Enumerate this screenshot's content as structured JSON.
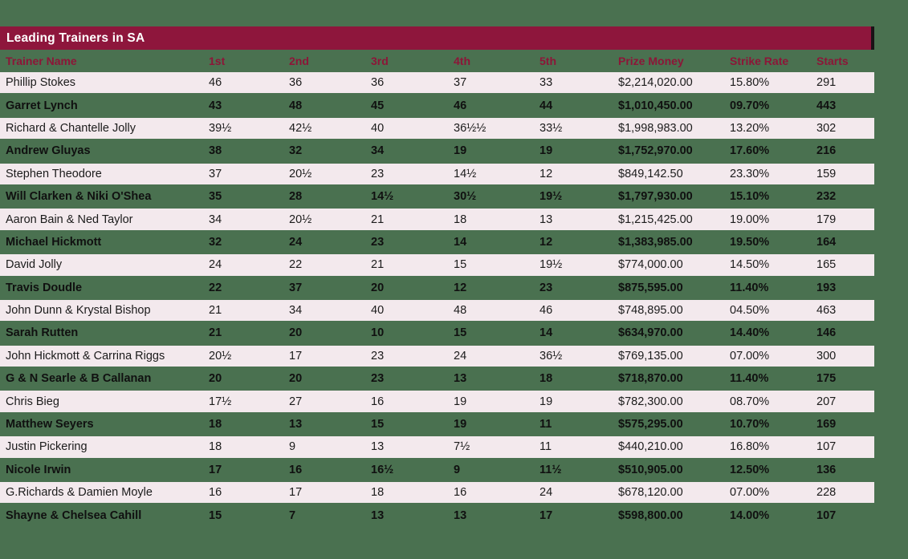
{
  "page": {
    "background_color": "#4A7150",
    "title_bar_color": "#8E163C",
    "title_text_color": "#FFFFFF",
    "header_text_color": "#8C1638",
    "stripe_row_color": "#F3E9ED"
  },
  "chart_data": {
    "type": "table",
    "title": "Leading Trainers in SA",
    "columns": [
      "Trainer Name",
      "1st",
      "2nd",
      "3rd",
      "4th",
      "5th",
      "Prize Money",
      "Strike Rate",
      "Starts"
    ],
    "rows": [
      [
        "Phillip Stokes",
        "46",
        "36",
        "36",
        "37",
        "33",
        "$2,214,020.00",
        "15.80%",
        "291"
      ],
      [
        "Garret Lynch",
        "43",
        "48",
        "45",
        "46",
        "44",
        "$1,010,450.00",
        "09.70%",
        "443"
      ],
      [
        "Richard & Chantelle Jolly",
        "39½",
        "42½",
        "40",
        "36½½",
        "33½",
        "$1,998,983.00",
        "13.20%",
        "302"
      ],
      [
        "Andrew Gluyas",
        "38",
        "32",
        "34",
        "19",
        "19",
        "$1,752,970.00",
        "17.60%",
        "216"
      ],
      [
        "Stephen Theodore",
        "37",
        "20½",
        "23",
        "14½",
        "12",
        "$849,142.50",
        "23.30%",
        "159"
      ],
      [
        "Will Clarken & Niki O'Shea",
        "35",
        "28",
        "14½",
        "30½",
        "19½",
        "$1,797,930.00",
        "15.10%",
        "232"
      ],
      [
        "Aaron Bain & Ned Taylor",
        "34",
        "20½",
        "21",
        "18",
        "13",
        "$1,215,425.00",
        "19.00%",
        "179"
      ],
      [
        "Michael Hickmott",
        "32",
        "24",
        "23",
        "14",
        "12",
        "$1,383,985.00",
        "19.50%",
        "164"
      ],
      [
        "David Jolly",
        "24",
        "22",
        "21",
        "15",
        "19½",
        "$774,000.00",
        "14.50%",
        "165"
      ],
      [
        "Travis Doudle",
        "22",
        "37",
        "20",
        "12",
        "23",
        "$875,595.00",
        "11.40%",
        "193"
      ],
      [
        "John Dunn & Krystal Bishop",
        "21",
        "34",
        "40",
        "48",
        "46",
        "$748,895.00",
        "04.50%",
        "463"
      ],
      [
        "Sarah Rutten",
        "21",
        "20",
        "10",
        "15",
        "14",
        "$634,970.00",
        "14.40%",
        "146"
      ],
      [
        "John Hickmott & Carrina Riggs",
        "20½",
        "17",
        "23",
        "24",
        "36½",
        "$769,135.00",
        "07.00%",
        "300"
      ],
      [
        "G & N Searle & B Callanan",
        "20",
        "20",
        "23",
        "13",
        "18",
        "$718,870.00",
        "11.40%",
        "175"
      ],
      [
        "Chris Bieg",
        "17½",
        "27",
        "16",
        "19",
        "19",
        "$782,300.00",
        "08.70%",
        "207"
      ],
      [
        "Matthew Seyers",
        "18",
        "13",
        "15",
        "19",
        "11",
        "$575,295.00",
        "10.70%",
        "169"
      ],
      [
        "Justin Pickering",
        "18",
        "9",
        "13",
        "7½",
        "11",
        "$440,210.00",
        "16.80%",
        "107"
      ],
      [
        "Nicole Irwin",
        "17",
        "16",
        "16½",
        "9",
        "11½",
        "$510,905.00",
        "12.50%",
        "136"
      ],
      [
        "G.Richards & Damien Moyle",
        "16",
        "17",
        "18",
        "16",
        "24",
        "$678,120.00",
        "07.00%",
        "228"
      ],
      [
        "Shayne & Chelsea Cahill",
        "15",
        "7",
        "13",
        "13",
        "17",
        "$598,800.00",
        "14.00%",
        "107"
      ]
    ]
  }
}
